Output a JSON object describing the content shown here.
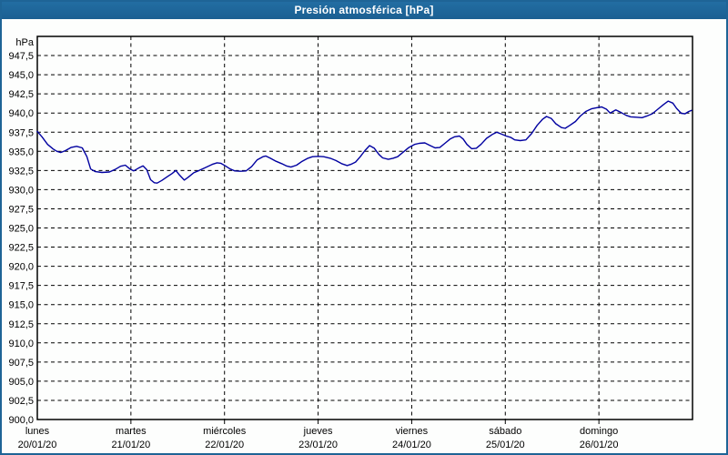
{
  "window": {
    "title": "Presión atmosférica [hPa]"
  },
  "colors": {
    "titlebar_bg": "#1E6496",
    "frame_border": "#1E6496",
    "title_text": "#FFFFFF",
    "series_line": "#0000A0",
    "gridline": "#000000",
    "plot_border": "#000000",
    "axis_text": "#000000",
    "background": "#FFFFFF"
  },
  "chart_data": {
    "type": "line",
    "title": "Presión atmosférica [hPa]",
    "unit_label": "hPa",
    "grid": true,
    "legend": "none",
    "y_axis": {
      "min": 900,
      "max": 950,
      "gridline_step": 2.5,
      "tick_labels": [
        "947,5",
        "945,0",
        "942,5",
        "940,0",
        "937,5",
        "935,0",
        "932,5",
        "930,0",
        "927,5",
        "925,0",
        "922,5",
        "920,0",
        "917,5",
        "915,0",
        "912,5",
        "910,0",
        "907,5",
        "905,0",
        "902,5",
        "900,0"
      ],
      "tick_values": [
        947.5,
        945.0,
        942.5,
        940.0,
        937.5,
        935.0,
        932.5,
        930.0,
        927.5,
        925.0,
        922.5,
        920.0,
        917.5,
        915.0,
        912.5,
        910.0,
        907.5,
        905.0,
        902.5,
        900.0
      ]
    },
    "x_axis": {
      "span_days": 7,
      "days": [
        {
          "name": "lunes",
          "date": "20/01/20"
        },
        {
          "name": "martes",
          "date": "21/01/20"
        },
        {
          "name": "miércoles",
          "date": "22/01/20"
        },
        {
          "name": "jueves",
          "date": "23/01/20"
        },
        {
          "name": "viernes",
          "date": "24/01/20"
        },
        {
          "name": "sábado",
          "date": "25/01/20"
        },
        {
          "name": "domingo",
          "date": "26/01/20"
        }
      ]
    },
    "series": [
      {
        "name": "Presión atmosférica",
        "color": "#0000A0",
        "points": [
          [
            0.0,
            937.6
          ],
          [
            0.05,
            936.9
          ],
          [
            0.11,
            935.9
          ],
          [
            0.17,
            935.3
          ],
          [
            0.21,
            935.0
          ],
          [
            0.25,
            934.85
          ],
          [
            0.3,
            935.1
          ],
          [
            0.36,
            935.5
          ],
          [
            0.42,
            935.65
          ],
          [
            0.48,
            935.45
          ],
          [
            0.53,
            934.3
          ],
          [
            0.57,
            932.7
          ],
          [
            0.62,
            932.35
          ],
          [
            0.69,
            932.25
          ],
          [
            0.77,
            932.3
          ],
          [
            0.84,
            932.7
          ],
          [
            0.89,
            933.05
          ],
          [
            0.94,
            933.2
          ],
          [
            0.99,
            932.7
          ],
          [
            1.03,
            932.45
          ],
          [
            1.08,
            932.8
          ],
          [
            1.13,
            933.1
          ],
          [
            1.17,
            932.6
          ],
          [
            1.21,
            931.3
          ],
          [
            1.25,
            930.9
          ],
          [
            1.28,
            930.85
          ],
          [
            1.33,
            931.2
          ],
          [
            1.39,
            931.7
          ],
          [
            1.44,
            932.1
          ],
          [
            1.48,
            932.5
          ],
          [
            1.52,
            931.9
          ],
          [
            1.57,
            931.25
          ],
          [
            1.61,
            931.6
          ],
          [
            1.67,
            932.2
          ],
          [
            1.73,
            932.5
          ],
          [
            1.8,
            932.9
          ],
          [
            1.87,
            933.3
          ],
          [
            1.92,
            933.5
          ],
          [
            1.96,
            933.45
          ],
          [
            2.01,
            933.1
          ],
          [
            2.06,
            932.7
          ],
          [
            2.11,
            932.45
          ],
          [
            2.17,
            932.4
          ],
          [
            2.23,
            932.45
          ],
          [
            2.29,
            933.0
          ],
          [
            2.35,
            933.9
          ],
          [
            2.41,
            934.3
          ],
          [
            2.44,
            934.4
          ],
          [
            2.49,
            934.1
          ],
          [
            2.55,
            933.7
          ],
          [
            2.61,
            933.4
          ],
          [
            2.66,
            933.1
          ],
          [
            2.71,
            932.95
          ],
          [
            2.77,
            933.2
          ],
          [
            2.83,
            933.7
          ],
          [
            2.89,
            934.1
          ],
          [
            2.94,
            934.3
          ],
          [
            3.0,
            934.35
          ],
          [
            3.06,
            934.3
          ],
          [
            3.13,
            934.1
          ],
          [
            3.19,
            933.8
          ],
          [
            3.25,
            933.4
          ],
          [
            3.31,
            933.15
          ],
          [
            3.35,
            933.3
          ],
          [
            3.4,
            933.6
          ],
          [
            3.45,
            934.3
          ],
          [
            3.5,
            935.1
          ],
          [
            3.55,
            935.75
          ],
          [
            3.6,
            935.4
          ],
          [
            3.65,
            934.6
          ],
          [
            3.69,
            934.15
          ],
          [
            3.75,
            933.95
          ],
          [
            3.8,
            934.1
          ],
          [
            3.85,
            934.3
          ],
          [
            3.91,
            934.9
          ],
          [
            3.97,
            935.5
          ],
          [
            4.03,
            935.9
          ],
          [
            4.08,
            936.05
          ],
          [
            4.14,
            936.1
          ],
          [
            4.19,
            935.8
          ],
          [
            4.25,
            935.45
          ],
          [
            4.3,
            935.5
          ],
          [
            4.36,
            936.1
          ],
          [
            4.41,
            936.6
          ],
          [
            4.46,
            936.9
          ],
          [
            4.51,
            937.0
          ],
          [
            4.55,
            936.6
          ],
          [
            4.59,
            935.9
          ],
          [
            4.64,
            935.35
          ],
          [
            4.69,
            935.4
          ],
          [
            4.74,
            935.9
          ],
          [
            4.8,
            936.7
          ],
          [
            4.86,
            937.2
          ],
          [
            4.91,
            937.5
          ],
          [
            4.96,
            937.25
          ],
          [
            5.01,
            937.0
          ],
          [
            5.06,
            936.8
          ],
          [
            5.1,
            936.5
          ],
          [
            5.16,
            936.4
          ],
          [
            5.22,
            936.5
          ],
          [
            5.28,
            937.3
          ],
          [
            5.34,
            938.4
          ],
          [
            5.4,
            939.2
          ],
          [
            5.44,
            939.55
          ],
          [
            5.49,
            939.3
          ],
          [
            5.54,
            938.6
          ],
          [
            5.6,
            938.1
          ],
          [
            5.64,
            938.0
          ],
          [
            5.69,
            938.4
          ],
          [
            5.75,
            938.9
          ],
          [
            5.8,
            939.6
          ],
          [
            5.86,
            940.2
          ],
          [
            5.92,
            940.55
          ],
          [
            5.98,
            940.7
          ],
          [
            6.03,
            940.8
          ],
          [
            6.08,
            940.5
          ],
          [
            6.12,
            940.0
          ],
          [
            6.18,
            940.4
          ],
          [
            6.24,
            940.05
          ],
          [
            6.29,
            939.7
          ],
          [
            6.34,
            939.5
          ],
          [
            6.4,
            939.45
          ],
          [
            6.46,
            939.4
          ],
          [
            6.51,
            939.6
          ],
          [
            6.57,
            939.9
          ],
          [
            6.63,
            940.5
          ],
          [
            6.69,
            941.1
          ],
          [
            6.74,
            941.55
          ],
          [
            6.79,
            941.3
          ],
          [
            6.83,
            940.6
          ],
          [
            6.88,
            939.95
          ],
          [
            6.92,
            939.9
          ],
          [
            6.96,
            940.2
          ],
          [
            6.99,
            940.35
          ]
        ]
      }
    ]
  }
}
